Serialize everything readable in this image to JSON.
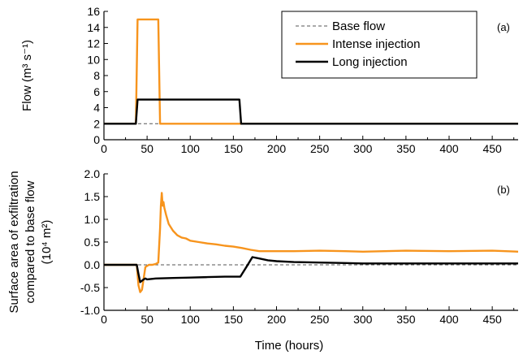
{
  "colors": {
    "intense": "#f7941d",
    "long": "#000000",
    "base": "#555555"
  },
  "chart_data": [
    {
      "panel": "(a)",
      "type": "line",
      "title": "",
      "xlabel": "",
      "ylabel": "Flow (m³ s⁻¹)",
      "xlim": [
        0,
        480
      ],
      "ylim": [
        0,
        16
      ],
      "xticks": [
        0,
        50,
        100,
        150,
        200,
        250,
        300,
        350,
        400,
        450
      ],
      "yticks": [
        0,
        2,
        4,
        6,
        8,
        10,
        12,
        14,
        16
      ],
      "grid": false,
      "legend": "top-right",
      "series": [
        {
          "name": "Base flow",
          "style": "dashed",
          "x": [
            0,
            480
          ],
          "y": [
            2,
            2
          ]
        },
        {
          "name": "Intense injection",
          "style": "solid",
          "x": [
            0,
            37,
            39,
            63,
            65,
            480
          ],
          "y": [
            2,
            2,
            15,
            15,
            2,
            2
          ]
        },
        {
          "name": "Long injection",
          "style": "solid",
          "x": [
            0,
            37,
            39,
            157,
            159,
            480
          ],
          "y": [
            2,
            2,
            5,
            5,
            2,
            2
          ]
        }
      ]
    },
    {
      "panel": "(b)",
      "type": "line",
      "title": "",
      "xlabel": "Time (hours)",
      "ylabel_lines": [
        "Surface area of exfiltration",
        "compared to base flow",
        "(10⁴ m²)"
      ],
      "xlim": [
        0,
        480
      ],
      "ylim": [
        -1.0,
        2.0
      ],
      "xticks": [
        0,
        50,
        100,
        150,
        200,
        250,
        300,
        350,
        400,
        450
      ],
      "yticks": [
        -1.0,
        -0.5,
        0.0,
        0.5,
        1.0,
        1.5,
        2.0
      ],
      "grid": false,
      "series": [
        {
          "name": "Base flow",
          "style": "dashed",
          "x": [
            0,
            480
          ],
          "y": [
            0,
            0
          ]
        },
        {
          "name": "Intense injection",
          "style": "solid",
          "x": [
            0,
            38,
            40,
            42,
            44,
            46,
            48,
            52,
            56,
            60,
            63,
            65,
            66,
            67,
            68,
            69,
            70,
            72,
            75,
            80,
            85,
            90,
            95,
            100,
            110,
            120,
            130,
            140,
            150,
            160,
            170,
            180,
            200,
            220,
            250,
            280,
            300,
            350,
            400,
            450,
            480
          ],
          "y": [
            0,
            0,
            -0.45,
            -0.6,
            -0.55,
            -0.3,
            -0.05,
            0.0,
            0.0,
            0.02,
            0.05,
            0.8,
            1.3,
            1.58,
            1.3,
            1.38,
            1.25,
            1.1,
            0.9,
            0.75,
            0.65,
            0.6,
            0.58,
            0.53,
            0.5,
            0.47,
            0.45,
            0.42,
            0.4,
            0.37,
            0.33,
            0.3,
            0.3,
            0.3,
            0.31,
            0.3,
            0.29,
            0.31,
            0.3,
            0.31,
            0.29
          ]
        },
        {
          "name": "Long injection",
          "style": "solid",
          "x": [
            0,
            38,
            40,
            42,
            44,
            46,
            48,
            50,
            60,
            80,
            100,
            120,
            140,
            158,
            165,
            172,
            180,
            190,
            200,
            220,
            250,
            280,
            300,
            350,
            400,
            450,
            480
          ],
          "y": [
            0,
            0,
            -0.2,
            -0.38,
            -0.35,
            -0.32,
            -0.3,
            -0.32,
            -0.3,
            -0.29,
            -0.28,
            -0.27,
            -0.26,
            -0.26,
            -0.05,
            0.17,
            0.14,
            0.1,
            0.08,
            0.06,
            0.05,
            0.04,
            0.03,
            0.03,
            0.03,
            0.03,
            0.03
          ]
        }
      ]
    }
  ]
}
